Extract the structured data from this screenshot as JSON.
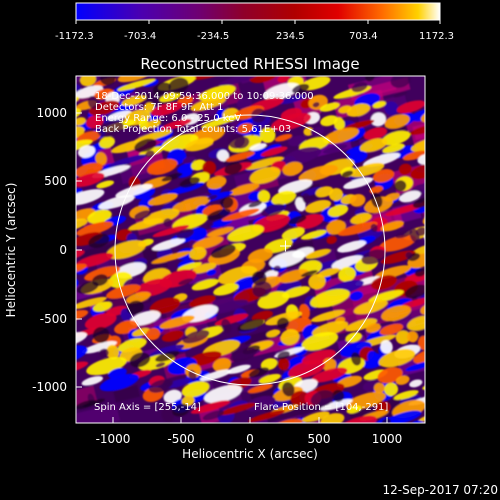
{
  "colorbar": {
    "tick_labels": [
      "-1172.3",
      "-703.4",
      "-234.5",
      "234.5",
      "703.4",
      "1172.3"
    ],
    "stops": [
      "#0000ff",
      "#4b00b0",
      "#6f0071",
      "#8f002a",
      "#b00000",
      "#e00000",
      "#ff6a00",
      "#ffd100",
      "#ffffff"
    ]
  },
  "plot": {
    "title": "Reconstructed RHESSI Image",
    "info_lines": [
      "18-Dec-2014 09:59:36.000 to 10:09:36.000",
      "Detectors: 7F 8F 9F, Att 1",
      "Energy Range: 6.0 - 25.0 keV",
      "Back Projection     Total counts: 5.61E+03"
    ],
    "footer_left": "Spin Axis = [255,-14]",
    "footer_right": "Flare Position = [104,-291]",
    "x_label": "Heliocentric X (arcsec)",
    "y_label": "Heliocentric Y (arcsec)",
    "x_ticks": [
      "-1000",
      "-500",
      "0",
      "500",
      "1000"
    ],
    "y_ticks": [
      "1000",
      "500",
      "0",
      "-500",
      "-1000"
    ],
    "background_colors": [
      "#2f0040",
      "#5a0079",
      "#7a009e",
      "#a00066",
      "#c7007b"
    ],
    "blob_colors": [
      "#ffffff",
      "#fff100",
      "#ffcb00",
      "#ff9e00",
      "#ff5a00",
      "#e1002f",
      "#b00000",
      "#0000ff",
      "#2d00a7",
      "#4b0070"
    ]
  },
  "footer": {
    "timestamp": "12-Sep-2017 07:20"
  }
}
